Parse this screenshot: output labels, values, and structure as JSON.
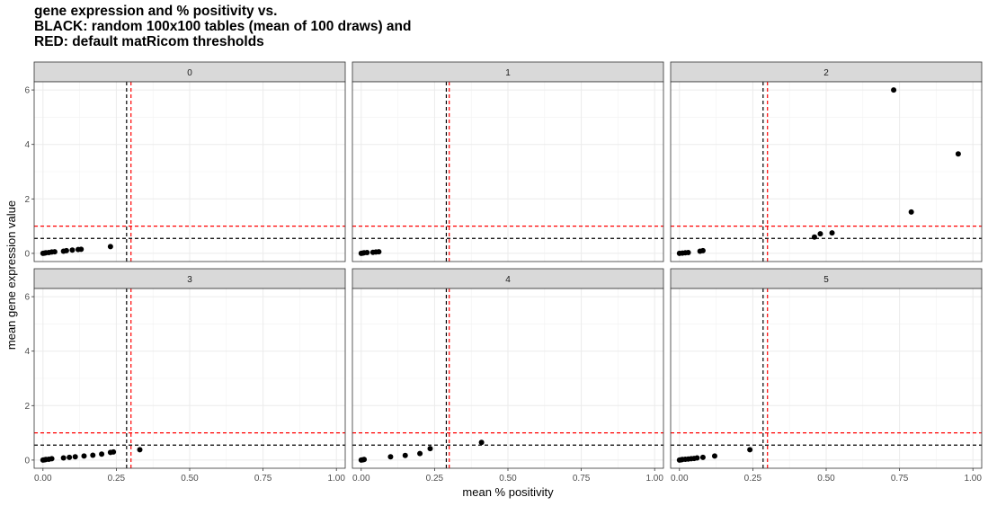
{
  "title_lines": [
    "gene expression and % positivity vs.",
    "BLACK: random 100x100 tables (mean of 100 draws) and",
    "RED: default matRicom thresholds"
  ],
  "chart_data": {
    "type": "scatter",
    "xlabel": "mean % positivity",
    "ylabel": "mean gene expression value",
    "xlim": [
      -0.03,
      1.03
    ],
    "ylim": [
      -0.3,
      6.3
    ],
    "x_ticks": [
      0.0,
      0.25,
      0.5,
      0.75,
      1.0
    ],
    "x_tick_labels": [
      "0.00",
      "0.25",
      "0.50",
      "0.75",
      "1.00"
    ],
    "y_ticks": [
      0,
      2,
      4,
      6
    ],
    "y_tick_labels": [
      "0",
      "2",
      "4",
      "6"
    ],
    "grid": true,
    "colors": {
      "black_lines": "#000000",
      "red_lines": "#ff0000",
      "points": "#000000",
      "strip_fill": "#d9d9d9"
    },
    "facets": [
      {
        "label": "0",
        "vline_black": 0.285,
        "vline_red": 0.3,
        "hline_black": 0.55,
        "hline_red": 1.0,
        "points": [
          [
            0.0,
            0.0
          ],
          [
            0.005,
            0.01
          ],
          [
            0.01,
            0.02
          ],
          [
            0.02,
            0.03
          ],
          [
            0.03,
            0.05
          ],
          [
            0.04,
            0.06
          ],
          [
            0.07,
            0.08
          ],
          [
            0.08,
            0.1
          ],
          [
            0.1,
            0.12
          ],
          [
            0.12,
            0.14
          ],
          [
            0.13,
            0.15
          ],
          [
            0.23,
            0.25
          ]
        ]
      },
      {
        "label": "1",
        "vline_black": 0.29,
        "vline_red": 0.3,
        "hline_black": 0.55,
        "hline_red": 1.0,
        "points": [
          [
            0.0,
            0.0
          ],
          [
            0.005,
            0.01
          ],
          [
            0.01,
            0.02
          ],
          [
            0.02,
            0.03
          ],
          [
            0.04,
            0.04
          ],
          [
            0.05,
            0.05
          ],
          [
            0.06,
            0.06
          ]
        ]
      },
      {
        "label": "2",
        "vline_black": 0.285,
        "vline_red": 0.3,
        "hline_black": 0.55,
        "hline_red": 1.0,
        "points": [
          [
            0.0,
            0.0
          ],
          [
            0.01,
            0.01
          ],
          [
            0.02,
            0.02
          ],
          [
            0.03,
            0.03
          ],
          [
            0.07,
            0.08
          ],
          [
            0.08,
            0.1
          ],
          [
            0.46,
            0.6
          ],
          [
            0.48,
            0.72
          ],
          [
            0.52,
            0.75
          ],
          [
            0.73,
            6.0
          ],
          [
            0.79,
            1.52
          ],
          [
            0.95,
            3.65
          ]
        ]
      },
      {
        "label": "3",
        "vline_black": 0.285,
        "vline_red": 0.3,
        "hline_black": 0.55,
        "hline_red": 1.0,
        "points": [
          [
            0.0,
            0.0
          ],
          [
            0.005,
            0.01
          ],
          [
            0.01,
            0.02
          ],
          [
            0.02,
            0.03
          ],
          [
            0.03,
            0.05
          ],
          [
            0.07,
            0.08
          ],
          [
            0.09,
            0.1
          ],
          [
            0.11,
            0.12
          ],
          [
            0.14,
            0.15
          ],
          [
            0.17,
            0.18
          ],
          [
            0.2,
            0.22
          ],
          [
            0.23,
            0.28
          ],
          [
            0.24,
            0.3
          ],
          [
            0.33,
            0.38
          ]
        ]
      },
      {
        "label": "4",
        "vline_black": 0.29,
        "vline_red": 0.3,
        "hline_black": 0.55,
        "hline_red": 1.0,
        "points": [
          [
            0.0,
            0.0
          ],
          [
            0.005,
            0.01
          ],
          [
            0.01,
            0.02
          ],
          [
            0.1,
            0.12
          ],
          [
            0.15,
            0.17
          ],
          [
            0.2,
            0.24
          ],
          [
            0.235,
            0.42
          ],
          [
            0.41,
            0.65
          ]
        ]
      },
      {
        "label": "5",
        "vline_black": 0.285,
        "vline_red": 0.3,
        "hline_black": 0.55,
        "hline_red": 1.0,
        "points": [
          [
            0.0,
            0.0
          ],
          [
            0.005,
            0.01
          ],
          [
            0.01,
            0.02
          ],
          [
            0.02,
            0.03
          ],
          [
            0.03,
            0.04
          ],
          [
            0.04,
            0.05
          ],
          [
            0.05,
            0.06
          ],
          [
            0.06,
            0.08
          ],
          [
            0.08,
            0.1
          ],
          [
            0.12,
            0.15
          ],
          [
            0.24,
            0.38
          ]
        ]
      }
    ]
  }
}
